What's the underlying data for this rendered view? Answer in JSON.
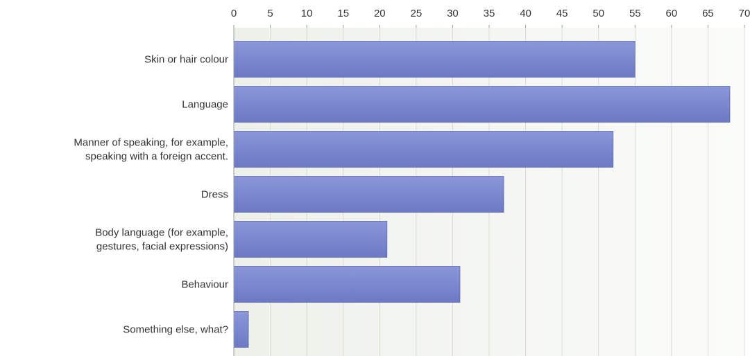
{
  "chart_data": {
    "type": "bar",
    "orientation": "horizontal",
    "categories": [
      [
        "Skin or hair colour"
      ],
      [
        "Language"
      ],
      [
        "Manner of speaking, for example,",
        "speaking with a foreign accent."
      ],
      [
        "Dress"
      ],
      [
        "Body language (for example,",
        "gestures, facial expressions)"
      ],
      [
        "Behaviour"
      ],
      [
        "Something else, what?"
      ]
    ],
    "values": [
      55,
      68,
      52,
      37,
      21,
      31,
      2
    ],
    "xlim": [
      0,
      70
    ],
    "xticks": [
      0,
      5,
      10,
      15,
      20,
      25,
      30,
      35,
      40,
      45,
      50,
      55,
      60,
      65,
      70
    ],
    "axis_position": "top",
    "grid": true,
    "colors": {
      "bar_top": "#8b97d9",
      "bar_bottom": "#6c79c4",
      "bar_border": "#5d69b3",
      "plot_bg_left": "#eef0ea",
      "plot_bg_right": "#fbfcfa",
      "grid": "#d9dcd4",
      "axis": "#999999"
    }
  }
}
